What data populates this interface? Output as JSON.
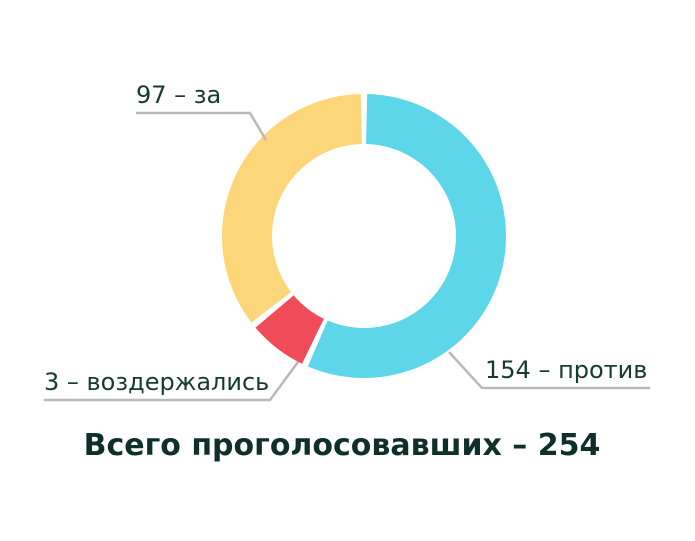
{
  "chart_data": {
    "type": "pie",
    "categories": [
      "за",
      "против",
      "воздержались"
    ],
    "values": [
      97,
      154,
      3
    ],
    "colors": [
      "#fdd679",
      "#5dd6ea",
      "#f04b58"
    ],
    "labels": [
      "97 – за",
      "154 – против",
      "3 – воздержались"
    ],
    "total_label": "Всего проголосовавших – 254"
  }
}
